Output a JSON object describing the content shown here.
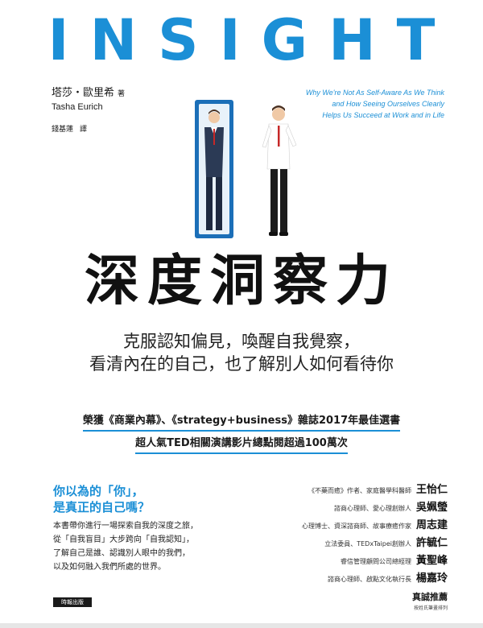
{
  "cover": {
    "title_en": "INSIGHT",
    "author_zh": "塔莎・歐里希",
    "author_role": "著",
    "author_en": "Tasha Eurich",
    "translator": "錢基蓮",
    "translator_role": "譯",
    "subtitle_en": [
      "Why We're Not As Self-Aware As We Think",
      "and How Seeing Ourselves Clearly",
      "Helps Us Succeed at Work and in Life"
    ],
    "title_zh": "深度洞察力",
    "tagline": [
      "克服認知偏見，喚醒自我覺察，",
      "看清內在的自己，也了解別人如何看待你"
    ],
    "award": [
      "榮獲《商業內幕》、《strategy+business》雜誌2017年最佳選書",
      "超人氣TED相關演講影片總點閱超過100萬次"
    ],
    "question": [
      "你以為的「你」，",
      "是真正的自己嗎？"
    ],
    "intro": [
      "本書帶你進行一場探索自我的深度之旅，",
      "從「自我盲目」大步跨向「自我認知」，",
      "了解自己是誰、認識別人眼中的我們，",
      "以及如何融入我們所處的世界。"
    ],
    "endorsers": [
      {
        "title": "《不藥而癒》作者、家庭醫學科醫師",
        "name": "王怡仁"
      },
      {
        "title": "諮商心理師、愛心理創辦人",
        "name": "吳姵瑩"
      },
      {
        "title": "心理博士、資深諮商師、故事療癒作家",
        "name": "周志建"
      },
      {
        "title": "立法委員、TEDxTaipei創辦人",
        "name": "許毓仁"
      },
      {
        "title": "睿信管理顧問公司總經理",
        "name": "黃聖峰"
      },
      {
        "title": "諮商心理師、啟點文化執行長",
        "name": "楊嘉玲"
      }
    ],
    "recommend": "真誠推薦",
    "recommend_note": "按姓氏筆畫排列",
    "publisher": "時報出版"
  },
  "colors": {
    "accent": "#1b8fd6",
    "text": "#111111"
  }
}
